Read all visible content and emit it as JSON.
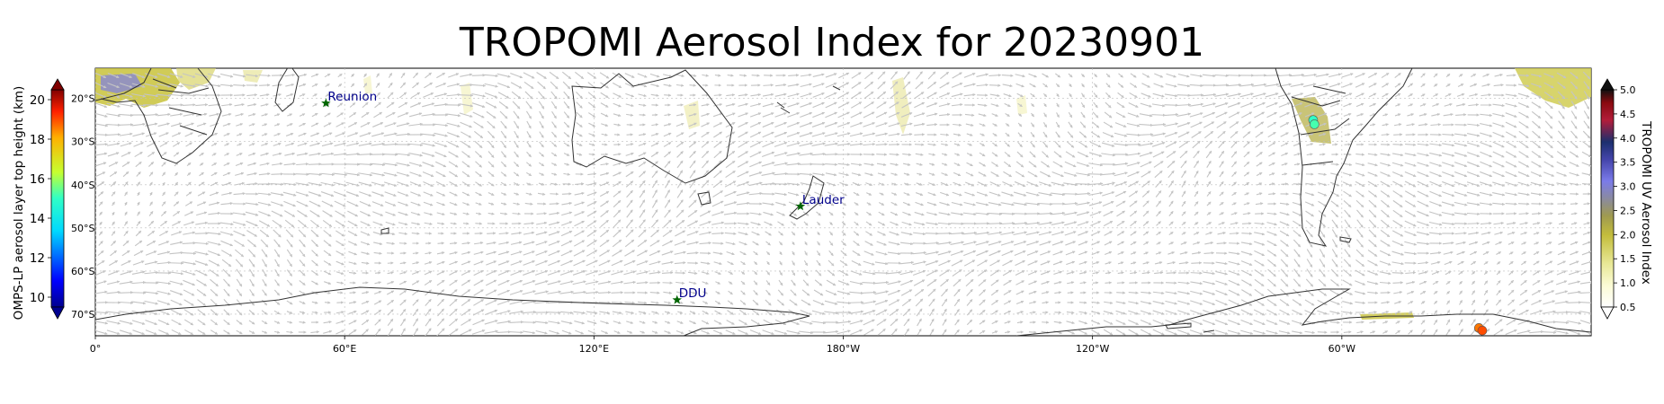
{
  "title": "TROPOMI Aerosol Index for 20230901",
  "lon_ticks": [
    "0°",
    "60°E",
    "120°E",
    "180°W",
    "120°W",
    "60°W"
  ],
  "lat_ticks": [
    "20°S",
    "30°S",
    "40°S",
    "50°S",
    "60°S",
    "70°S"
  ],
  "left_colorbar": {
    "label": "OMPS-LP aerosol layer top height (km)",
    "ticks": [
      "10",
      "12",
      "14",
      "16",
      "18",
      "20"
    ],
    "range_km": [
      9.5,
      20.5
    ]
  },
  "right_colorbar": {
    "label": "TROPOMI UV Aerosol Index",
    "ticks": [
      "0.5",
      "1.0",
      "1.5",
      "2.0",
      "2.5",
      "3.0",
      "3.5",
      "4.0",
      "4.5",
      "5.0"
    ],
    "range": [
      0.5,
      5.0
    ]
  },
  "sites": [
    {
      "name": "Reunion",
      "lon": 55.5,
      "lat": -21.1
    },
    {
      "name": "Lauder",
      "lon": 169.7,
      "lat": -45.0
    },
    {
      "name": "DDU",
      "lon": 140.0,
      "lat": -66.7
    }
  ],
  "omps_points": [
    {
      "lon": 293.1,
      "lat": -25.0,
      "height_km": 15.0
    },
    {
      "lon": 293.4,
      "lat": -26.0,
      "height_km": 15.2
    },
    {
      "lon": 333.0,
      "lat": -73.2,
      "height_km": 18.6
    },
    {
      "lon": 333.8,
      "lat": -73.8,
      "height_km": 19.0
    }
  ],
  "map_extent": {
    "lon": [
      0,
      360
    ],
    "lat": [
      -75,
      -13
    ]
  },
  "colors": {
    "site_marker": "#006400",
    "site_label": "#00008b",
    "coastline": "#333333",
    "wind_arrow": "#c4c4c4",
    "gridline": "#bdbdbd"
  }
}
